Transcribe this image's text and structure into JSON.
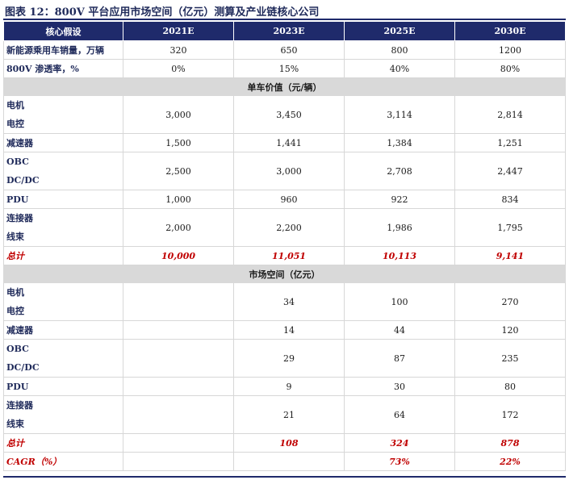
{
  "title": "图表 12：800V 平台应用市场空间（亿元）测算及产业链核心公司",
  "header": [
    "核心假设",
    "2021E",
    "2023E",
    "2025E",
    "2030E"
  ],
  "assumptions": [
    {
      "label": "新能源乘用车销量，万辆",
      "values": [
        "320",
        "650",
        "800",
        "1200"
      ]
    },
    {
      "label": "800V 渗透率，%",
      "values": [
        "0%",
        "15%",
        "40%",
        "80%"
      ]
    }
  ],
  "section_unit_value": "单车价值（元/辆）",
  "unit_rows": [
    {
      "labels": [
        "电机",
        "电控"
      ],
      "values": [
        "3,000",
        "3,450",
        "3,114",
        "2,814"
      ]
    },
    {
      "labels": [
        "减速器"
      ],
      "values": [
        "1,500",
        "1,441",
        "1,384",
        "1,251"
      ]
    },
    {
      "labels": [
        "OBC",
        "DC/DC"
      ],
      "values": [
        "2,500",
        "3,000",
        "2,708",
        "2,447"
      ]
    },
    {
      "labels": [
        "PDU"
      ],
      "values": [
        "1,000",
        "960",
        "922",
        "834"
      ]
    },
    {
      "labels": [
        "连接器",
        "线束"
      ],
      "values": [
        "2,000",
        "2,200",
        "1,986",
        "1,795"
      ]
    }
  ],
  "unit_total": {
    "label": "总计",
    "values": [
      "10,000",
      "11,051",
      "10,113",
      "9,141"
    ]
  },
  "section_market": "市场空间（亿元）",
  "market_rows": [
    {
      "labels": [
        "电机",
        "电控"
      ],
      "values": [
        "",
        "34",
        "100",
        "270"
      ]
    },
    {
      "labels": [
        "减速器"
      ],
      "values": [
        "",
        "14",
        "44",
        "120"
      ]
    },
    {
      "labels": [
        "OBC",
        "DC/DC"
      ],
      "values": [
        "",
        "29",
        "87",
        "235"
      ]
    },
    {
      "labels": [
        "PDU"
      ],
      "values": [
        "",
        "9",
        "30",
        "80"
      ]
    },
    {
      "labels": [
        "连接器",
        "线束"
      ],
      "values": [
        "",
        "21",
        "64",
        "172"
      ]
    }
  ],
  "market_total": {
    "label": "总计",
    "values": [
      "",
      "108",
      "324",
      "878"
    ]
  },
  "cagr": {
    "label": "CAGR（%）",
    "values": [
      "",
      "",
      "73%",
      "22%"
    ]
  }
}
